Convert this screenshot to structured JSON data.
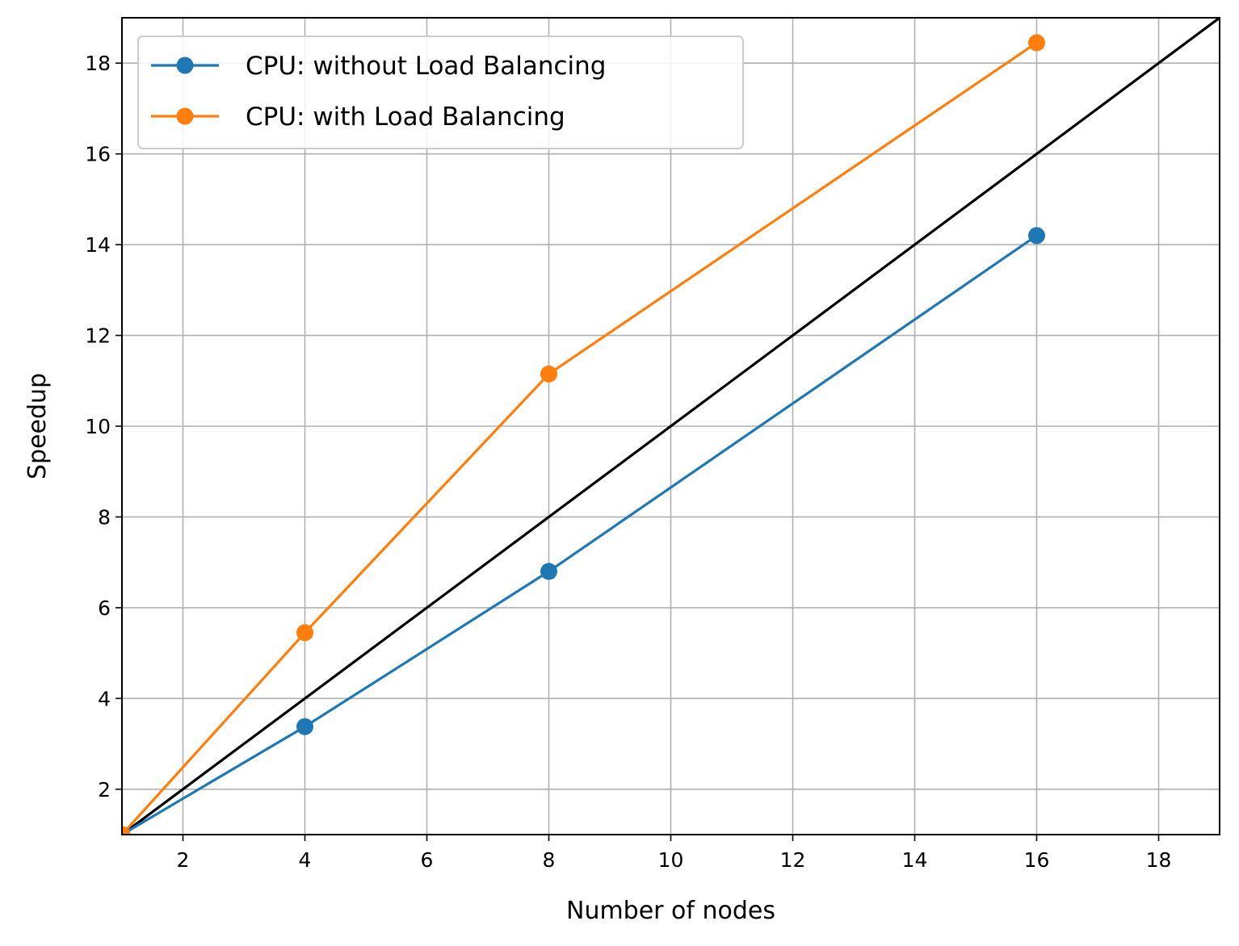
{
  "chart_data": {
    "type": "line",
    "title": "",
    "xlabel": "Number of nodes",
    "ylabel": "Speedup",
    "xlim": [
      1,
      19
    ],
    "ylim": [
      1,
      19
    ],
    "xticks": [
      2,
      4,
      6,
      8,
      10,
      12,
      14,
      16,
      18
    ],
    "yticks": [
      2,
      4,
      6,
      8,
      10,
      12,
      14,
      16,
      18
    ],
    "grid": true,
    "legend_position": "top-left",
    "series": [
      {
        "name": "CPU: without Load Balancing",
        "color": "#1f77b4",
        "marker": "circle",
        "x": [
          1,
          4,
          8,
          16
        ],
        "y": [
          1.0,
          3.38,
          6.8,
          14.2
        ]
      },
      {
        "name": "CPU: with Load Balancing",
        "color": "#ff7f0e",
        "marker": "circle",
        "x": [
          1,
          4,
          8,
          16
        ],
        "y": [
          1.0,
          5.45,
          11.15,
          18.45
        ]
      }
    ],
    "reference_line": {
      "color": "#000000",
      "x": [
        1,
        19
      ],
      "y": [
        1,
        19
      ]
    }
  }
}
